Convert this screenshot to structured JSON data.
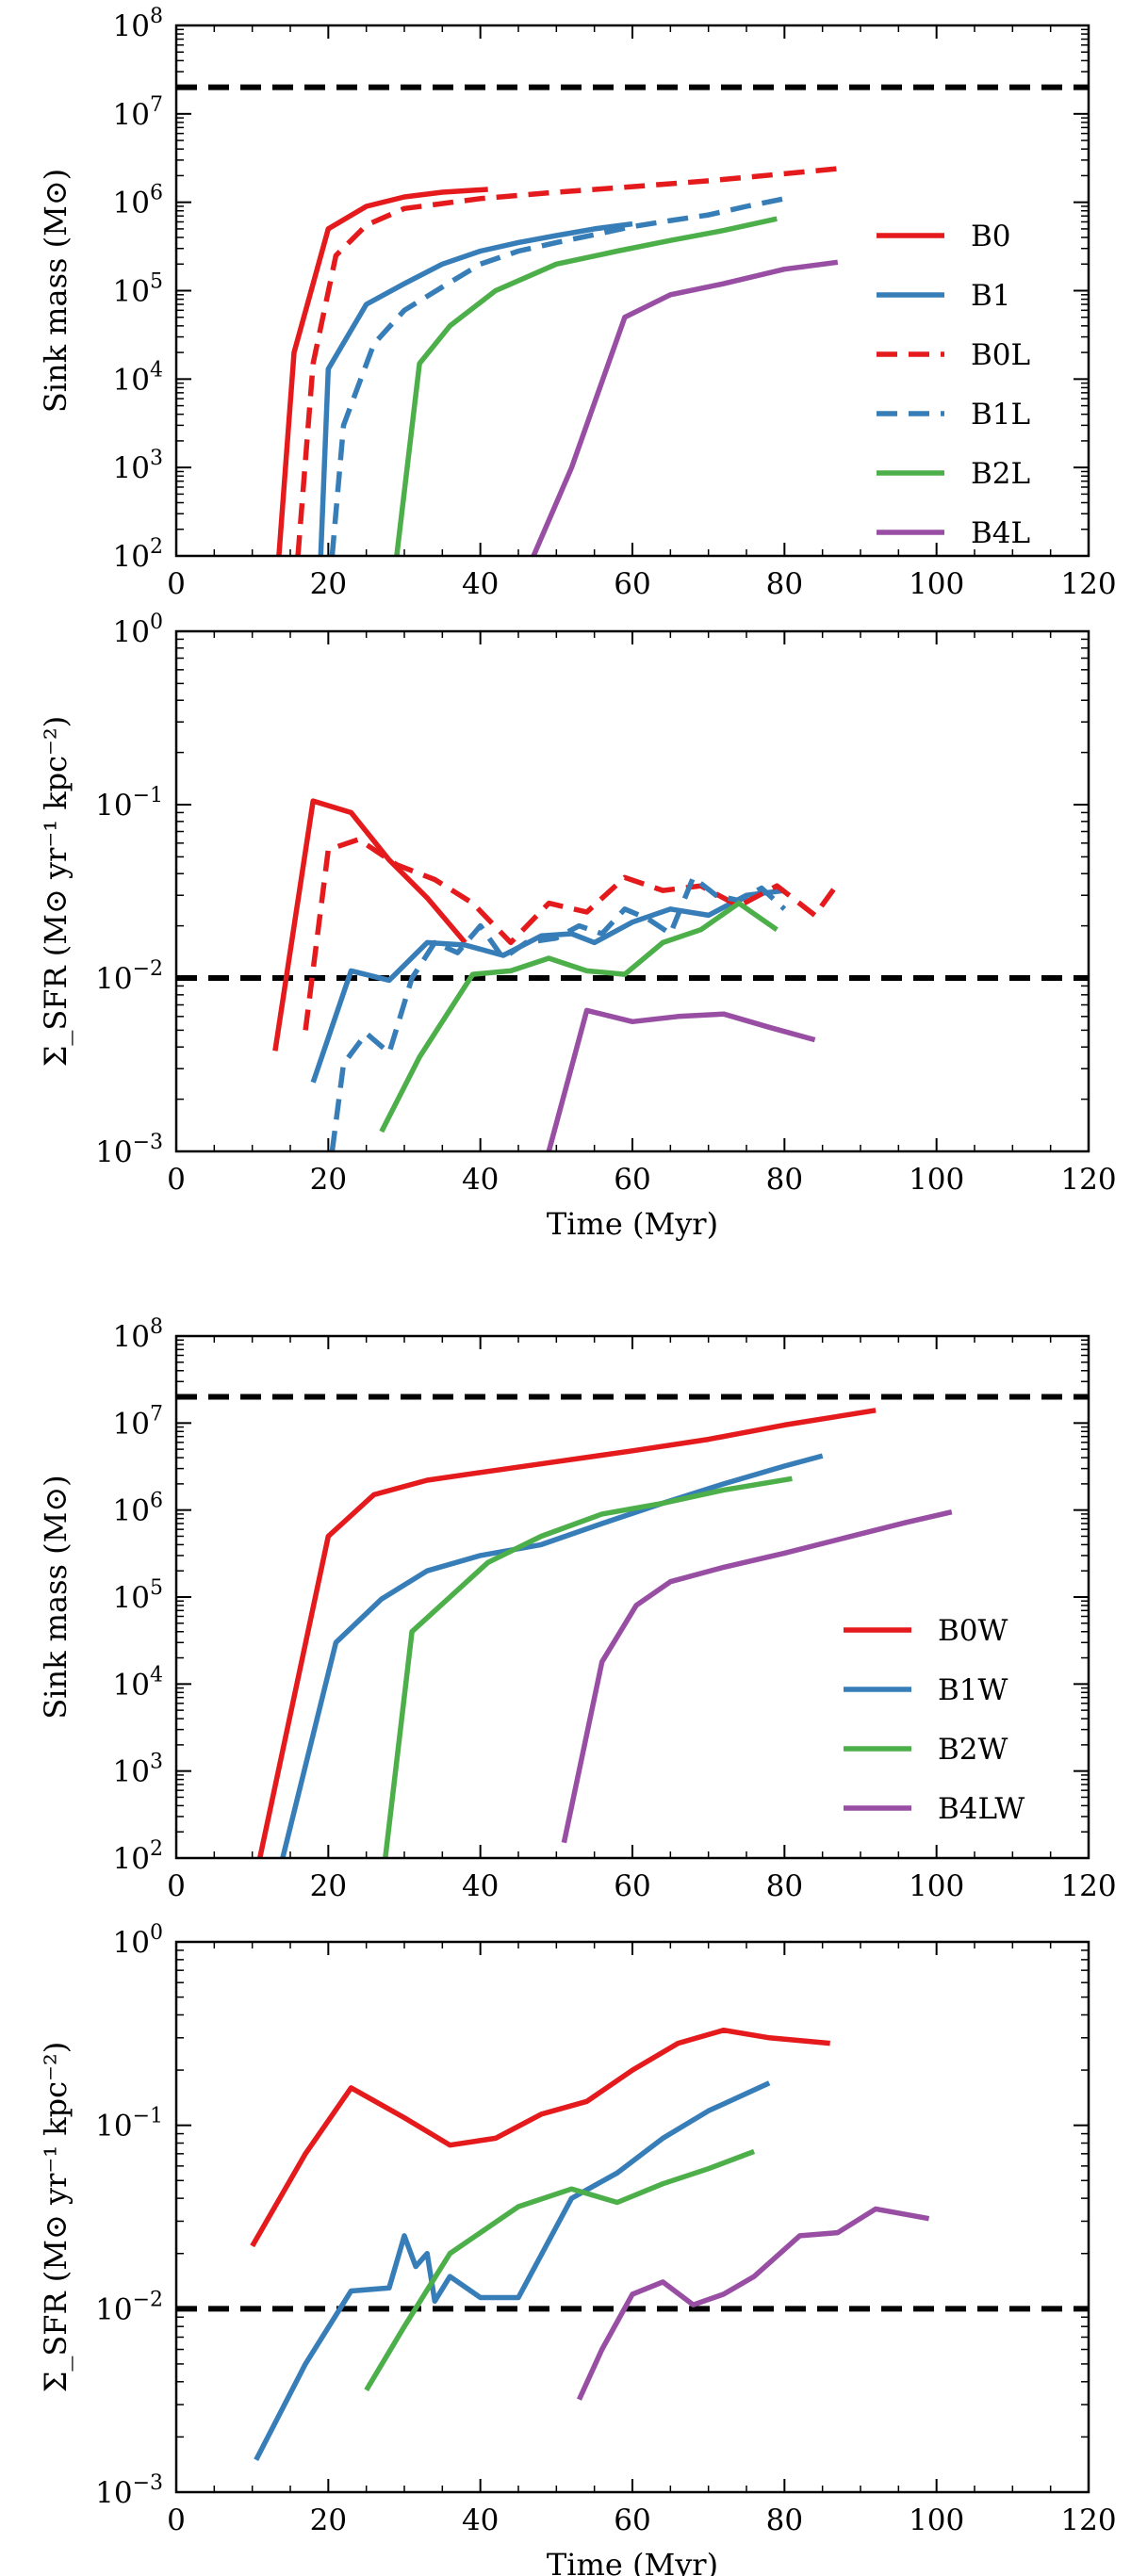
{
  "chart_data": [
    {
      "type": "line",
      "title": "",
      "xlabel": "",
      "ylabel": "Sink mass (M⊙)",
      "xlim": [
        0,
        120
      ],
      "ylim": [
        100,
        100000000
      ],
      "yscale": "log",
      "x_ticks": [
        "0",
        "20",
        "40",
        "60",
        "80",
        "100",
        "120"
      ],
      "y_ticks": [
        {
          "base": "10",
          "exp": "2"
        },
        {
          "base": "10",
          "exp": "3"
        },
        {
          "base": "10",
          "exp": "4"
        },
        {
          "base": "10",
          "exp": "5"
        },
        {
          "base": "10",
          "exp": "6"
        },
        {
          "base": "10",
          "exp": "7"
        },
        {
          "base": "10",
          "exp": "8"
        }
      ],
      "legend": "right",
      "reference_line": {
        "y": 20000000,
        "style": "dashed",
        "color": "#000000"
      },
      "series": [
        {
          "name": "B0",
          "color": "#e41a1c",
          "style": "solid",
          "x": [
            13.5,
            15.5,
            20,
            25,
            30,
            35,
            41
          ],
          "y": [
            100,
            20000,
            500000,
            900000,
            1150000,
            1300000,
            1400000
          ]
        },
        {
          "name": "B1",
          "color": "#377eb8",
          "style": "solid",
          "x": [
            19,
            20,
            25,
            30,
            35,
            40,
            45,
            50,
            55,
            60
          ],
          "y": [
            100,
            13000,
            70000,
            120000,
            200000,
            280000,
            350000,
            420000,
            500000,
            570000
          ]
        },
        {
          "name": "B0L",
          "color": "#e41a1c",
          "style": "dashed",
          "x": [
            16,
            18,
            21,
            25,
            30,
            40,
            50,
            60,
            70,
            80,
            87
          ],
          "y": [
            100,
            15000,
            250000,
            550000,
            850000,
            1100000,
            1300000,
            1500000,
            1750000,
            2100000,
            2400000
          ]
        },
        {
          "name": "B1L",
          "color": "#377eb8",
          "style": "dashed",
          "x": [
            20.5,
            22,
            26,
            30,
            35,
            40,
            45,
            50,
            55,
            60,
            65,
            70,
            75,
            80
          ],
          "y": [
            100,
            3000,
            25000,
            60000,
            110000,
            200000,
            280000,
            350000,
            430000,
            530000,
            620000,
            720000,
            900000,
            1100000
          ]
        },
        {
          "name": "B2L",
          "color": "#4daf4a",
          "style": "solid",
          "x": [
            29,
            32,
            36,
            42,
            50,
            58,
            65,
            72,
            79
          ],
          "y": [
            100,
            15000,
            40000,
            100000,
            200000,
            280000,
            370000,
            480000,
            650000
          ]
        },
        {
          "name": "B4L",
          "color": "#984ea3",
          "style": "solid",
          "x": [
            47,
            52,
            59,
            65,
            72,
            80,
            87
          ],
          "y": [
            100,
            1000,
            50000,
            90000,
            120000,
            175000,
            210000
          ]
        }
      ]
    },
    {
      "type": "line",
      "title": "",
      "xlabel": "Time (Myr)",
      "ylabel": "Σ_SFR (M⊙ yr⁻¹ kpc⁻²)",
      "xlim": [
        0,
        120
      ],
      "ylim": [
        0.001,
        1
      ],
      "yscale": "log",
      "x_ticks": [
        "0",
        "20",
        "40",
        "60",
        "80",
        "100",
        "120"
      ],
      "y_ticks": [
        {
          "base": "10",
          "exp": "−3"
        },
        {
          "base": "10",
          "exp": "−2"
        },
        {
          "base": "10",
          "exp": "−1"
        },
        {
          "base": "10",
          "exp": "0"
        }
      ],
      "reference_line": {
        "y": 0.01,
        "style": "dashed",
        "color": "#000000"
      },
      "series": [
        {
          "name": "B0",
          "color": "#e41a1c",
          "style": "solid",
          "x": [
            13,
            18,
            23,
            28,
            33,
            38
          ],
          "y": [
            0.0038,
            0.105,
            0.09,
            0.048,
            0.029,
            0.016
          ]
        },
        {
          "name": "B1",
          "color": "#377eb8",
          "style": "solid",
          "x": [
            18,
            23,
            28,
            33,
            38,
            43,
            48,
            52,
            55,
            60,
            65,
            70,
            75,
            80
          ],
          "y": [
            0.0025,
            0.011,
            0.0097,
            0.016,
            0.0155,
            0.0135,
            0.0175,
            0.018,
            0.016,
            0.021,
            0.025,
            0.023,
            0.03,
            0.032
          ]
        },
        {
          "name": "B0L",
          "color": "#e41a1c",
          "style": "dashed",
          "x": [
            17,
            20,
            24,
            29,
            34,
            39,
            44,
            49,
            54,
            59,
            64,
            69,
            74,
            79,
            84,
            87
          ],
          "y": [
            0.005,
            0.055,
            0.063,
            0.045,
            0.037,
            0.027,
            0.016,
            0.027,
            0.024,
            0.038,
            0.032,
            0.034,
            0.026,
            0.034,
            0.023,
            0.035
          ]
        },
        {
          "name": "B1L",
          "color": "#377eb8",
          "style": "dashed",
          "x": [
            20.5,
            22,
            25,
            28,
            31,
            34,
            37,
            40,
            43,
            46,
            50,
            53,
            56,
            59,
            62,
            65,
            68,
            71,
            74,
            77,
            80
          ],
          "y": [
            0.001,
            0.0032,
            0.0048,
            0.0037,
            0.01,
            0.016,
            0.014,
            0.02,
            0.013,
            0.016,
            0.017,
            0.02,
            0.018,
            0.025,
            0.022,
            0.018,
            0.038,
            0.03,
            0.028,
            0.033,
            0.025
          ]
        },
        {
          "name": "B2L",
          "color": "#4daf4a",
          "style": "solid",
          "x": [
            27,
            32,
            39,
            44,
            49,
            54,
            59,
            64,
            69,
            74,
            79
          ],
          "y": [
            0.0013,
            0.0035,
            0.0105,
            0.011,
            0.013,
            0.011,
            0.0105,
            0.016,
            0.019,
            0.027,
            0.019
          ]
        },
        {
          "name": "B4L",
          "color": "#984ea3",
          "style": "solid",
          "x": [
            49,
            54,
            60,
            66,
            72,
            78,
            84
          ],
          "y": [
            0.001,
            0.0065,
            0.0056,
            0.006,
            0.0062,
            0.0052,
            0.0044
          ]
        }
      ]
    },
    {
      "type": "line",
      "title": "",
      "xlabel": "",
      "ylabel": "Sink mass (M⊙)",
      "xlim": [
        0,
        120
      ],
      "ylim": [
        100,
        100000000
      ],
      "yscale": "log",
      "x_ticks": [
        "0",
        "20",
        "40",
        "60",
        "80",
        "100",
        "120"
      ],
      "y_ticks": [
        {
          "base": "10",
          "exp": "2"
        },
        {
          "base": "10",
          "exp": "3"
        },
        {
          "base": "10",
          "exp": "4"
        },
        {
          "base": "10",
          "exp": "5"
        },
        {
          "base": "10",
          "exp": "6"
        },
        {
          "base": "10",
          "exp": "7"
        },
        {
          "base": "10",
          "exp": "8"
        }
      ],
      "legend": "right",
      "reference_line": {
        "y": 20000000,
        "style": "dashed",
        "color": "#000000"
      },
      "series": [
        {
          "name": "B0W",
          "color": "#e41a1c",
          "style": "solid",
          "x": [
            11,
            20,
            26,
            33,
            40,
            50,
            60,
            70,
            80,
            92
          ],
          "y": [
            100,
            500000,
            1500000,
            2200000,
            2700000,
            3600000,
            4800000,
            6500000,
            9500000,
            14000000
          ]
        },
        {
          "name": "B1W",
          "color": "#377eb8",
          "style": "solid",
          "x": [
            14,
            21,
            27,
            33,
            40,
            48,
            56,
            64,
            72,
            80,
            85
          ],
          "y": [
            100,
            30000,
            95000,
            200000,
            300000,
            400000,
            700000,
            1200000,
            2000000,
            3200000,
            4200000
          ]
        },
        {
          "name": "B2W",
          "color": "#4daf4a",
          "style": "solid",
          "x": [
            27.5,
            31,
            36,
            41,
            48,
            56,
            64,
            72,
            81
          ],
          "y": [
            100,
            40000,
            100000,
            250000,
            500000,
            900000,
            1200000,
            1700000,
            2300000
          ]
        },
        {
          "name": "B4LW",
          "color": "#984ea3",
          "style": "solid",
          "x": [
            51,
            56,
            60.5,
            65,
            72,
            80,
            88,
            96,
            102
          ],
          "y": [
            150,
            18000,
            80000,
            150000,
            220000,
            320000,
            480000,
            720000,
            950000
          ]
        }
      ]
    },
    {
      "type": "line",
      "title": "",
      "xlabel": "Time (Myr)",
      "ylabel": "Σ_SFR (M⊙ yr⁻¹ kpc⁻²)",
      "xlim": [
        0,
        120
      ],
      "ylim": [
        0.001,
        1
      ],
      "yscale": "log",
      "x_ticks": [
        "0",
        "20",
        "40",
        "60",
        "80",
        "100",
        "120"
      ],
      "y_ticks": [
        {
          "base": "10",
          "exp": "−3"
        },
        {
          "base": "10",
          "exp": "−2"
        },
        {
          "base": "10",
          "exp": "−1"
        },
        {
          "base": "10",
          "exp": "0"
        }
      ],
      "reference_line": {
        "y": 0.01,
        "style": "dashed",
        "color": "#000000"
      },
      "series": [
        {
          "name": "B0W",
          "color": "#e41a1c",
          "style": "solid",
          "x": [
            10,
            17,
            23,
            30,
            36,
            42,
            48,
            54,
            60,
            66,
            72,
            78,
            86
          ],
          "y": [
            0.022,
            0.07,
            0.16,
            0.11,
            0.078,
            0.085,
            0.115,
            0.135,
            0.2,
            0.28,
            0.33,
            0.3,
            0.28
          ]
        },
        {
          "name": "B1W",
          "color": "#377eb8",
          "style": "solid",
          "x": [
            10.5,
            17,
            23,
            28,
            30,
            31.5,
            33,
            34,
            36,
            40,
            45,
            52,
            58,
            64,
            70,
            78
          ],
          "y": [
            0.0015,
            0.005,
            0.0125,
            0.013,
            0.025,
            0.017,
            0.02,
            0.011,
            0.015,
            0.0115,
            0.0115,
            0.04,
            0.055,
            0.085,
            0.12,
            0.17
          ]
        },
        {
          "name": "B2W",
          "color": "#4daf4a",
          "style": "solid",
          "x": [
            25,
            30,
            36,
            45,
            52,
            58,
            64,
            70,
            76
          ],
          "y": [
            0.0036,
            0.008,
            0.02,
            0.036,
            0.045,
            0.038,
            0.048,
            0.058,
            0.072
          ]
        },
        {
          "name": "B4LW",
          "color": "#984ea3",
          "style": "solid",
          "x": [
            53,
            56,
            60,
            64,
            68,
            72,
            76,
            82,
            87,
            92,
            99
          ],
          "y": [
            0.0032,
            0.006,
            0.012,
            0.014,
            0.0105,
            0.012,
            0.015,
            0.025,
            0.026,
            0.035,
            0.031
          ]
        }
      ]
    }
  ]
}
